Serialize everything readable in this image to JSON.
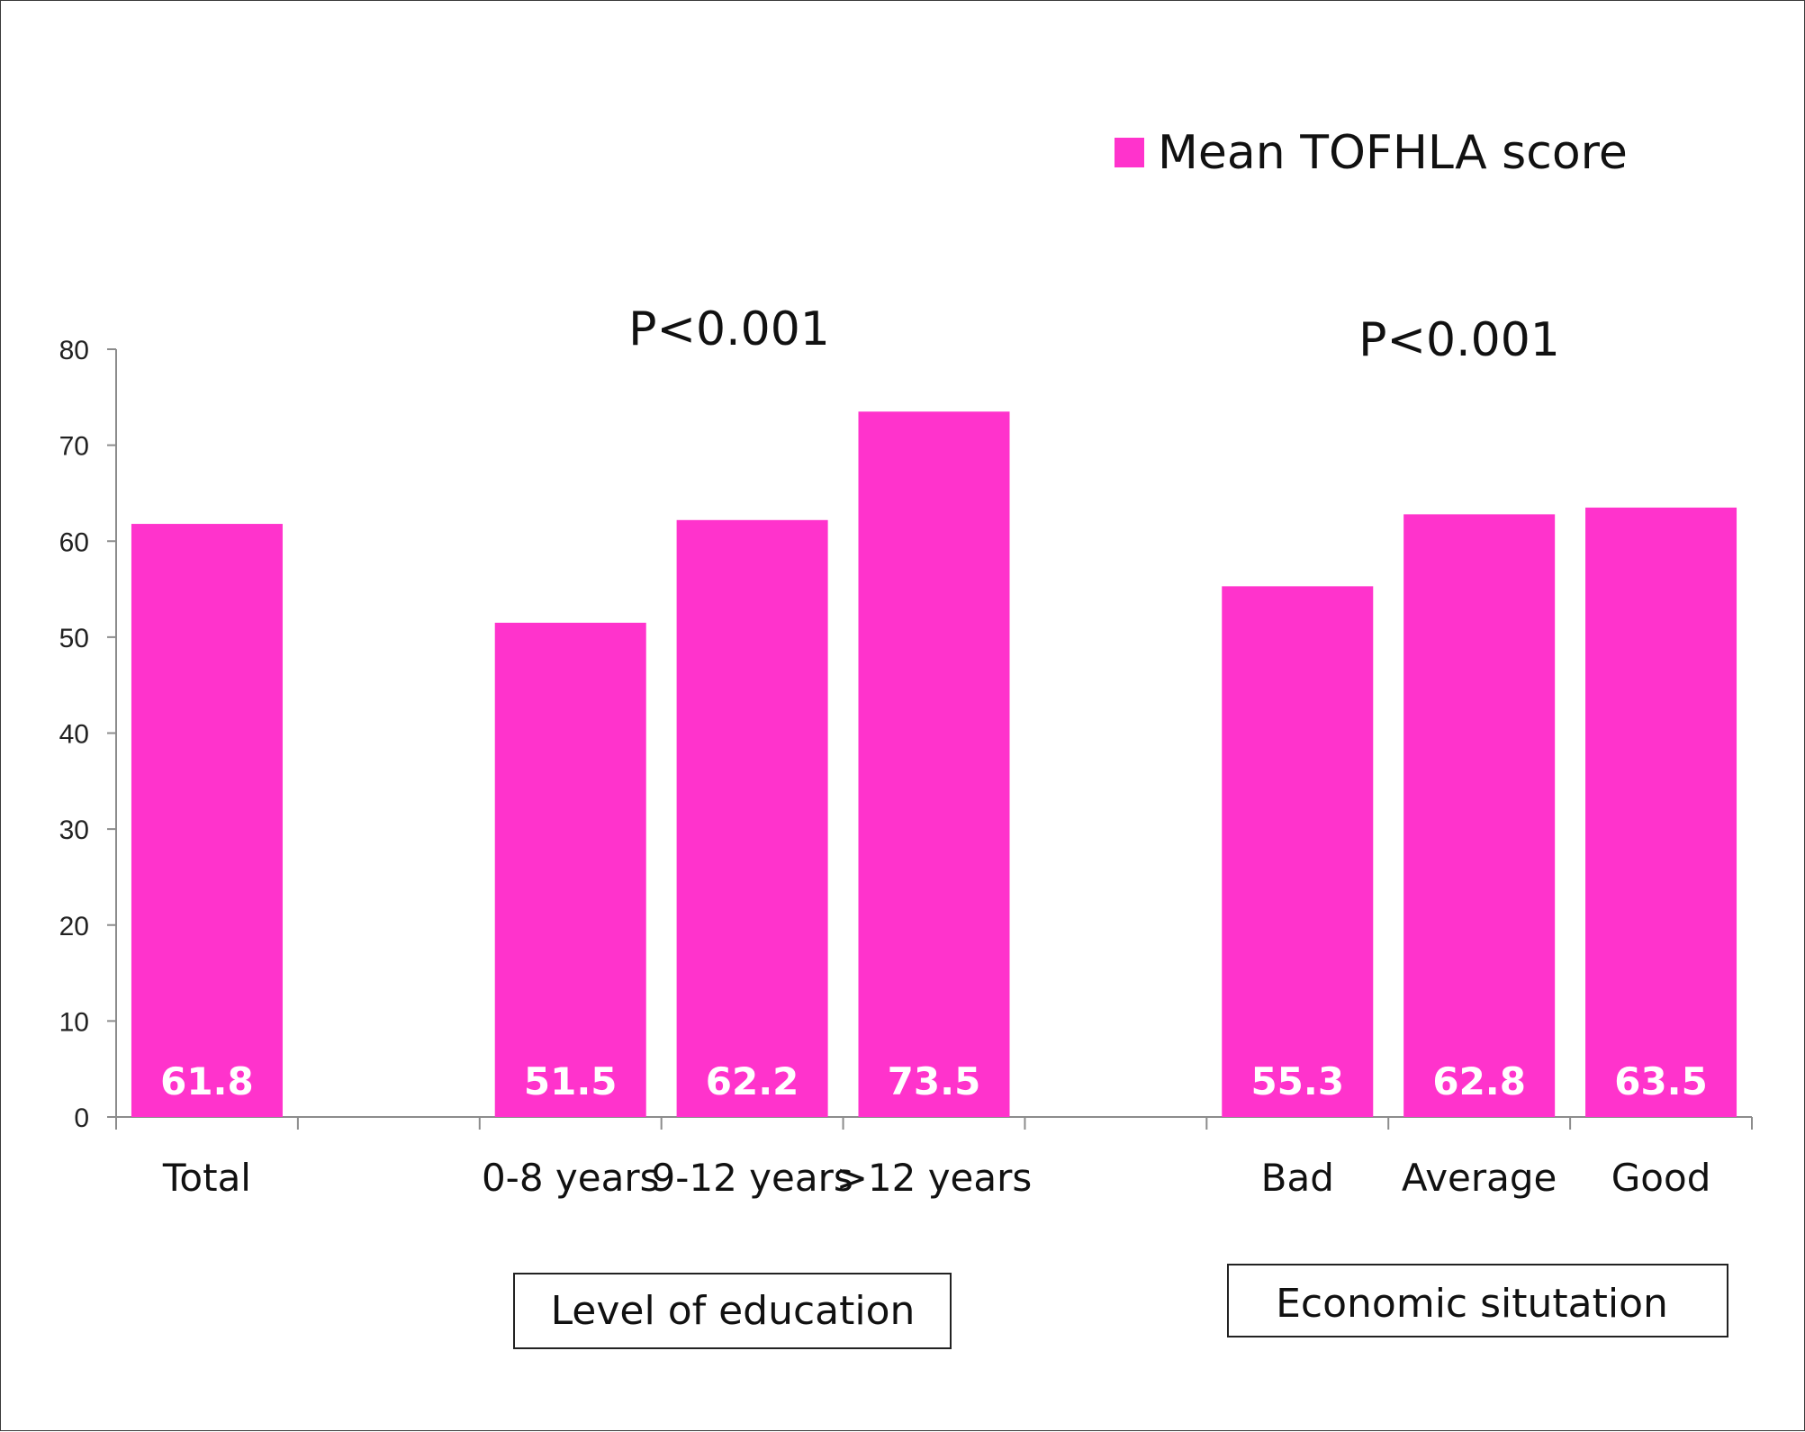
{
  "chart_data": {
    "type": "bar",
    "categories": [
      "Total",
      "",
      "0-8 years",
      "9-12 years",
      ">12 years",
      "",
      "Bad",
      "Average",
      "Good"
    ],
    "series": [
      {
        "name": "Mean TOFHLA score",
        "values": [
          61.8,
          null,
          51.5,
          62.2,
          73.5,
          null,
          55.3,
          62.8,
          63.5
        ]
      }
    ],
    "data_labels": [
      "61.8",
      "",
      "51.5",
      "62.2",
      "73.5",
      "",
      "55.3",
      "62.8",
      "63.5"
    ],
    "ylim": [
      0,
      80
    ],
    "yticks": [
      "0",
      "10",
      "20",
      "30",
      "40",
      "50",
      "60",
      "70",
      "80"
    ],
    "grid": false,
    "legend": {
      "position": "top-right",
      "label": "Mean TOFHLA score"
    },
    "annotations": [
      "P<0.001",
      "P<0.001"
    ],
    "groups": [
      "Level of education",
      "Economic situtation"
    ],
    "colors": {
      "bar": "#ff33cc",
      "axis": "#8c8c8c",
      "label": "#ffffff"
    }
  }
}
